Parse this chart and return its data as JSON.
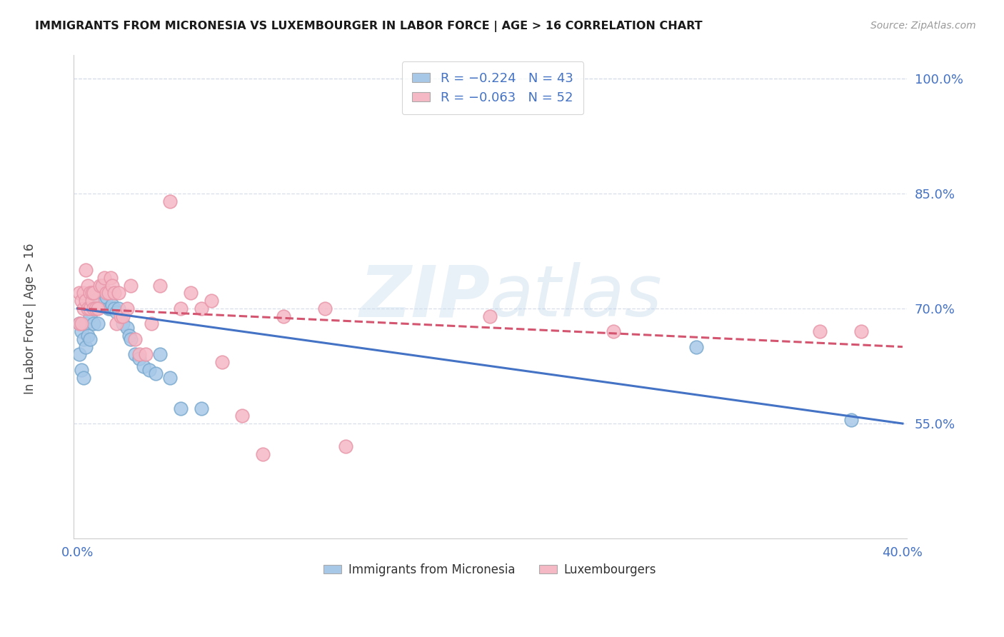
{
  "title": "IMMIGRANTS FROM MICRONESIA VS LUXEMBOURGER IN LABOR FORCE | AGE > 16 CORRELATION CHART",
  "source": "Source: ZipAtlas.com",
  "ylabel": "In Labor Force | Age > 16",
  "watermark": "ZIPatlas",
  "legend_blue_r": "−0.224",
  "legend_blue_n": "43",
  "legend_pink_r": "−0.063",
  "legend_pink_n": "52",
  "legend_label_blue": "Immigrants from Micronesia",
  "legend_label_pink": "Luxembourgers",
  "xlim": [
    -0.002,
    0.402
  ],
  "ylim": [
    0.4,
    1.03
  ],
  "yticks": [
    0.55,
    0.7,
    0.85,
    1.0
  ],
  "ytick_labels": [
    "55.0%",
    "70.0%",
    "85.0%",
    "100.0%"
  ],
  "xtick_labels_show": [
    "0.0%",
    "40.0%"
  ],
  "blue_fill": "#a8c8e8",
  "blue_edge": "#7aaacf",
  "pink_fill": "#f5b8c5",
  "pink_edge": "#e898aa",
  "blue_line": "#4472c4",
  "pink_line": "#d45570",
  "grid_color": "#d8dfe8",
  "label_color": "#4472c4",
  "background": "#ffffff",
  "blue_points_x": [
    0.001,
    0.001,
    0.002,
    0.002,
    0.003,
    0.003,
    0.004,
    0.004,
    0.005,
    0.005,
    0.006,
    0.006,
    0.007,
    0.008,
    0.008,
    0.009,
    0.01,
    0.01,
    0.011,
    0.012,
    0.013,
    0.014,
    0.015,
    0.016,
    0.017,
    0.018,
    0.019,
    0.02,
    0.022,
    0.024,
    0.025,
    0.026,
    0.028,
    0.03,
    0.032,
    0.035,
    0.038,
    0.04,
    0.045,
    0.05,
    0.06,
    0.3,
    0.375
  ],
  "blue_points_y": [
    0.68,
    0.64,
    0.67,
    0.62,
    0.66,
    0.61,
    0.65,
    0.68,
    0.665,
    0.7,
    0.69,
    0.66,
    0.7,
    0.68,
    0.72,
    0.7,
    0.68,
    0.72,
    0.71,
    0.73,
    0.72,
    0.715,
    0.7,
    0.7,
    0.705,
    0.7,
    0.695,
    0.7,
    0.68,
    0.675,
    0.665,
    0.66,
    0.64,
    0.635,
    0.625,
    0.62,
    0.615,
    0.64,
    0.61,
    0.57,
    0.57,
    0.65,
    0.555
  ],
  "pink_points_x": [
    0.001,
    0.001,
    0.002,
    0.002,
    0.003,
    0.003,
    0.004,
    0.004,
    0.005,
    0.005,
    0.006,
    0.006,
    0.007,
    0.007,
    0.008,
    0.008,
    0.009,
    0.01,
    0.011,
    0.012,
    0.013,
    0.014,
    0.015,
    0.016,
    0.017,
    0.018,
    0.019,
    0.02,
    0.021,
    0.022,
    0.024,
    0.026,
    0.028,
    0.03,
    0.033,
    0.036,
    0.04,
    0.045,
    0.05,
    0.055,
    0.06,
    0.065,
    0.07,
    0.08,
    0.09,
    0.1,
    0.12,
    0.13,
    0.2,
    0.26,
    0.36,
    0.38
  ],
  "pink_points_y": [
    0.72,
    0.68,
    0.71,
    0.68,
    0.7,
    0.72,
    0.71,
    0.75,
    0.73,
    0.7,
    0.7,
    0.72,
    0.71,
    0.72,
    0.72,
    0.7,
    0.7,
    0.7,
    0.73,
    0.73,
    0.74,
    0.72,
    0.72,
    0.74,
    0.73,
    0.72,
    0.68,
    0.72,
    0.69,
    0.69,
    0.7,
    0.73,
    0.66,
    0.64,
    0.64,
    0.68,
    0.73,
    0.84,
    0.7,
    0.72,
    0.7,
    0.71,
    0.63,
    0.56,
    0.51,
    0.69,
    0.7,
    0.52,
    0.69,
    0.67,
    0.67,
    0.67
  ],
  "blue_line_x0": 0.0,
  "blue_line_y0": 0.7,
  "blue_line_x1": 0.4,
  "blue_line_y1": 0.55,
  "pink_line_x0": 0.0,
  "pink_line_y0": 0.7,
  "pink_line_x1": 0.4,
  "pink_line_y1": 0.65
}
